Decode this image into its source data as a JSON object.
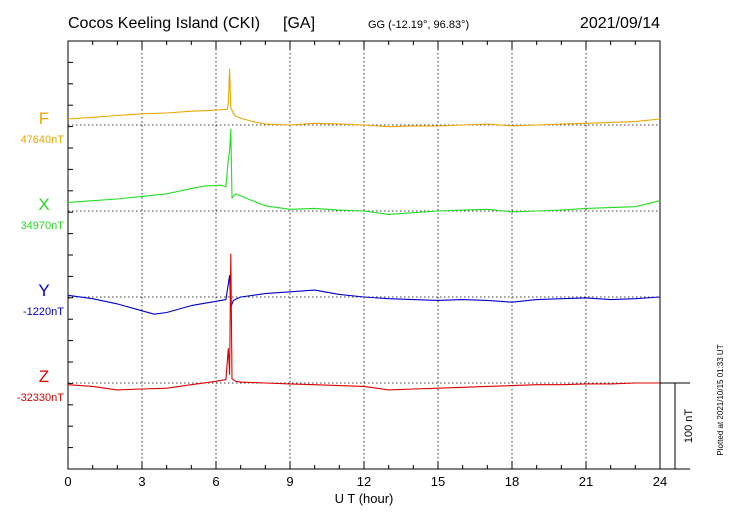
{
  "header": {
    "station": "Cocos Keeling Island (CKI)",
    "code": "[GA]",
    "coords": "GG (-12.19°,  96.83°)",
    "date": "2021/09/14"
  },
  "footer": {
    "plotted": "Plotted at 2021/10/15 01:33 UT"
  },
  "chart_data": {
    "type": "line",
    "xlabel": "U T (hour)",
    "xlim": [
      0,
      24
    ],
    "xticks": [
      0,
      3,
      6,
      9,
      12,
      15,
      18,
      21,
      24
    ],
    "grid": true,
    "scale_bar": "100 nT",
    "scale_bar_nT": 100,
    "series": [
      {
        "name": "F",
        "baseline": "47640nT",
        "color": "#e8a800",
        "points": [
          [
            0,
            7
          ],
          [
            1,
            9
          ],
          [
            2,
            11
          ],
          [
            3,
            13
          ],
          [
            4,
            14
          ],
          [
            5,
            16
          ],
          [
            5.8,
            17
          ],
          [
            6.3,
            18
          ],
          [
            6.45,
            18
          ],
          [
            6.5,
            25
          ],
          [
            6.55,
            65
          ],
          [
            6.6,
            20
          ],
          [
            6.7,
            14
          ],
          [
            6.8,
            10
          ],
          [
            7.0,
            8
          ],
          [
            7.5,
            4
          ],
          [
            8,
            1
          ],
          [
            9,
            0
          ],
          [
            10,
            2
          ],
          [
            11,
            1
          ],
          [
            12,
            0
          ],
          [
            13,
            -2
          ],
          [
            14,
            -1
          ],
          [
            15,
            -1
          ],
          [
            16,
            0
          ],
          [
            17,
            1
          ],
          [
            18,
            -1
          ],
          [
            19,
            0
          ],
          [
            20,
            1
          ],
          [
            21,
            2
          ],
          [
            22,
            3
          ],
          [
            23,
            4
          ],
          [
            24,
            7
          ]
        ]
      },
      {
        "name": "X",
        "baseline": "34970nT",
        "color": "#22dd22",
        "points": [
          [
            0,
            10
          ],
          [
            1,
            12
          ],
          [
            2,
            14
          ],
          [
            3,
            17
          ],
          [
            4,
            20
          ],
          [
            5,
            26
          ],
          [
            5.5,
            29
          ],
          [
            6.2,
            30
          ],
          [
            6.4,
            28
          ],
          [
            6.5,
            60
          ],
          [
            6.55,
            70
          ],
          [
            6.6,
            95
          ],
          [
            6.65,
            15
          ],
          [
            6.8,
            20
          ],
          [
            7.3,
            14
          ],
          [
            8,
            6
          ],
          [
            9,
            2
          ],
          [
            10,
            3
          ],
          [
            11,
            1
          ],
          [
            12,
            0
          ],
          [
            13,
            -4
          ],
          [
            14,
            -2
          ],
          [
            15,
            0
          ],
          [
            16,
            1
          ],
          [
            17,
            2
          ],
          [
            18,
            -1
          ],
          [
            19,
            0
          ],
          [
            20,
            1
          ],
          [
            21,
            3
          ],
          [
            22,
            4
          ],
          [
            23,
            5
          ],
          [
            24,
            12
          ]
        ]
      },
      {
        "name": "Y",
        "baseline": "-1220nT",
        "color": "#0000cc",
        "points": [
          [
            0,
            2
          ],
          [
            1,
            -2
          ],
          [
            2,
            -8
          ],
          [
            3,
            -16
          ],
          [
            3.5,
            -20
          ],
          [
            4,
            -18
          ],
          [
            5,
            -10
          ],
          [
            6,
            -5
          ],
          [
            6.4,
            -3
          ],
          [
            6.55,
            25
          ],
          [
            6.6,
            -12
          ],
          [
            6.7,
            -4
          ],
          [
            7,
            0
          ],
          [
            8,
            4
          ],
          [
            9,
            6
          ],
          [
            10,
            8
          ],
          [
            11,
            3
          ],
          [
            12,
            0
          ],
          [
            13,
            -2
          ],
          [
            14,
            -3
          ],
          [
            15,
            -4
          ],
          [
            16,
            -3
          ],
          [
            17,
            -4
          ],
          [
            18,
            -6
          ],
          [
            19,
            -3
          ],
          [
            20,
            -2
          ],
          [
            21,
            -1
          ],
          [
            22,
            -3
          ],
          [
            23,
            -2
          ],
          [
            24,
            0
          ]
        ]
      },
      {
        "name": "Z",
        "baseline": "-32330nT",
        "color": "#dd0000",
        "points": [
          [
            0,
            -2
          ],
          [
            1,
            -4
          ],
          [
            2,
            -8
          ],
          [
            3,
            -7
          ],
          [
            4,
            -6
          ],
          [
            5,
            -2
          ],
          [
            6,
            2
          ],
          [
            6.4,
            4
          ],
          [
            6.5,
            40
          ],
          [
            6.55,
            10
          ],
          [
            6.6,
            150
          ],
          [
            6.65,
            5
          ],
          [
            6.8,
            2
          ],
          [
            7,
            1
          ],
          [
            8,
            0
          ],
          [
            9,
            -1
          ],
          [
            10,
            -2
          ],
          [
            11,
            -3
          ],
          [
            12,
            -4
          ],
          [
            13,
            -8
          ],
          [
            14,
            -7
          ],
          [
            15,
            -6
          ],
          [
            16,
            -5
          ],
          [
            17,
            -4
          ],
          [
            18,
            -3
          ],
          [
            19,
            -2
          ],
          [
            20,
            -2
          ],
          [
            21,
            -1
          ],
          [
            22,
            -1
          ],
          [
            23,
            0
          ],
          [
            24,
            0
          ]
        ]
      }
    ]
  }
}
